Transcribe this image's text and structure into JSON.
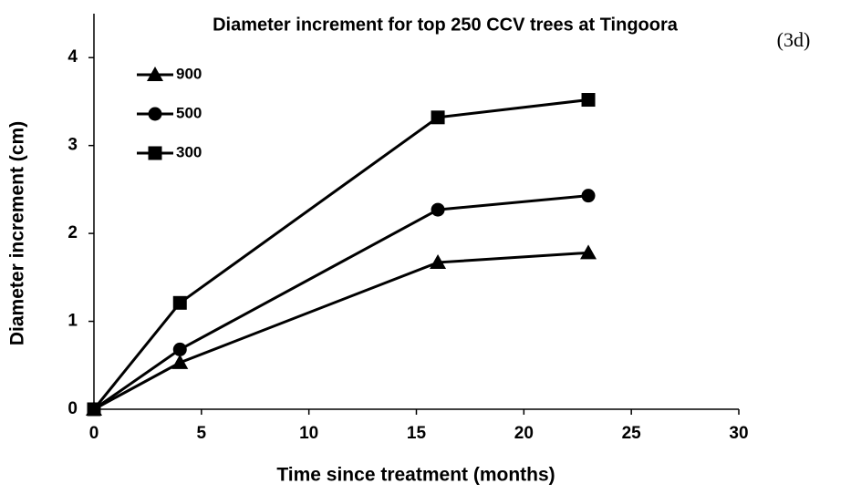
{
  "chart_data": {
    "type": "line",
    "title": "Diameter increment for top 250 CCV trees at Tingoora",
    "annotation": "(3d)",
    "x_label": "Time since treatment  (months)",
    "y_label": "Diameter increment  (cm)",
    "x": [
      0,
      4,
      16,
      23
    ],
    "series": [
      {
        "name": "900",
        "color": "#000000",
        "marker": "triangle",
        "values": [
          0,
          0.53,
          1.67,
          1.78
        ]
      },
      {
        "name": "500",
        "color": "#000000",
        "marker": "circle",
        "values": [
          0,
          0.68,
          2.27,
          2.43
        ]
      },
      {
        "name": "300",
        "color": "#000000",
        "marker": "square",
        "values": [
          0,
          1.21,
          3.32,
          3.52
        ]
      }
    ],
    "xlim": [
      0,
      30
    ],
    "xticks": [
      0,
      5,
      10,
      15,
      20,
      25,
      30
    ],
    "ylim": [
      0,
      4.5
    ],
    "yticks": [
      0,
      1,
      2,
      3,
      4
    ],
    "grid": false,
    "legend": "top-left"
  }
}
